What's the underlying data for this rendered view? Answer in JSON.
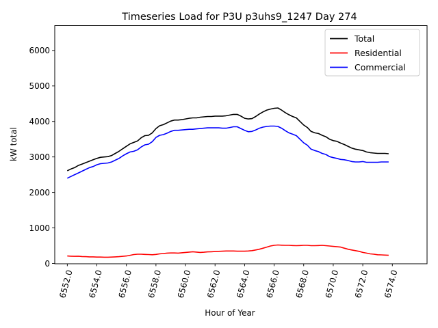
{
  "chart_data": {
    "type": "line",
    "title": "Timeseries Load for P3U p3uhs9_1247  Day 274",
    "xlabel": "Hour of Year",
    "ylabel": "kW total",
    "xlim": [
      6551.15,
      6576.35
    ],
    "ylim": [
      0,
      6700
    ],
    "x_ticks": [
      6552,
      6554,
      6556,
      6558,
      6560,
      6562,
      6564,
      6566,
      6568,
      6570,
      6572,
      6574
    ],
    "x_tick_labels": [
      "6552.0",
      "6554.0",
      "6556.0",
      "6558.0",
      "6560.0",
      "6562.0",
      "6564.0",
      "6566.0",
      "6568.0",
      "6570.0",
      "6572.0",
      "6574.0"
    ],
    "y_ticks": [
      0,
      1000,
      2000,
      3000,
      4000,
      5000,
      6000
    ],
    "y_tick_labels": [
      "0",
      "1000",
      "2000",
      "3000",
      "4000",
      "5000",
      "6000"
    ],
    "legend_position": "top-right",
    "grid": false,
    "x_start": 6552,
    "x_step": 0.25,
    "series": [
      {
        "name": "Total",
        "color": "#000000",
        "values": [
          2610,
          2660,
          2700,
          2760,
          2800,
          2840,
          2880,
          2920,
          2960,
          2990,
          3000,
          3010,
          3040,
          3100,
          3160,
          3230,
          3300,
          3370,
          3410,
          3450,
          3540,
          3600,
          3610,
          3680,
          3800,
          3880,
          3910,
          3960,
          4010,
          4040,
          4040,
          4050,
          4070,
          4090,
          4100,
          4100,
          4120,
          4130,
          4140,
          4140,
          4150,
          4150,
          4150,
          4160,
          4180,
          4200,
          4200,
          4150,
          4090,
          4070,
          4080,
          4140,
          4210,
          4270,
          4320,
          4350,
          4370,
          4380,
          4320,
          4250,
          4190,
          4140,
          4100,
          4000,
          3900,
          3830,
          3720,
          3680,
          3660,
          3610,
          3570,
          3500,
          3460,
          3440,
          3390,
          3350,
          3300,
          3250,
          3220,
          3200,
          3180,
          3140,
          3120,
          3110,
          3100,
          3100,
          3100,
          3090
        ]
      },
      {
        "name": "Residential",
        "color": "#ff0000",
        "values": [
          210,
          205,
          200,
          205,
          195,
          190,
          185,
          185,
          180,
          180,
          175,
          175,
          180,
          185,
          190,
          200,
          210,
          230,
          250,
          260,
          260,
          255,
          250,
          245,
          255,
          270,
          280,
          290,
          295,
          295,
          290,
          300,
          310,
          320,
          330,
          320,
          310,
          315,
          325,
          330,
          335,
          340,
          345,
          350,
          350,
          350,
          345,
          345,
          345,
          350,
          360,
          380,
          400,
          430,
          460,
          490,
          510,
          520,
          515,
          510,
          510,
          505,
          500,
          505,
          510,
          510,
          500,
          500,
          505,
          510,
          500,
          490,
          480,
          470,
          460,
          430,
          400,
          380,
          360,
          340,
          310,
          290,
          270,
          260,
          245,
          240,
          235,
          230
        ]
      },
      {
        "name": "Commercial",
        "color": "#0000ff",
        "values": [
          2400,
          2450,
          2500,
          2550,
          2600,
          2650,
          2700,
          2730,
          2780,
          2810,
          2820,
          2830,
          2860,
          2910,
          2960,
          3030,
          3090,
          3140,
          3160,
          3200,
          3280,
          3340,
          3360,
          3430,
          3550,
          3610,
          3630,
          3670,
          3720,
          3750,
          3750,
          3760,
          3770,
          3780,
          3780,
          3790,
          3800,
          3810,
          3820,
          3820,
          3820,
          3820,
          3810,
          3810,
          3830,
          3850,
          3850,
          3800,
          3750,
          3710,
          3720,
          3760,
          3810,
          3840,
          3860,
          3870,
          3870,
          3860,
          3810,
          3740,
          3680,
          3640,
          3600,
          3500,
          3400,
          3330,
          3220,
          3180,
          3150,
          3100,
          3070,
          3010,
          2980,
          2960,
          2930,
          2920,
          2900,
          2870,
          2860,
          2860,
          2870,
          2850,
          2850,
          2850,
          2850,
          2860,
          2860,
          2860
        ]
      }
    ]
  }
}
